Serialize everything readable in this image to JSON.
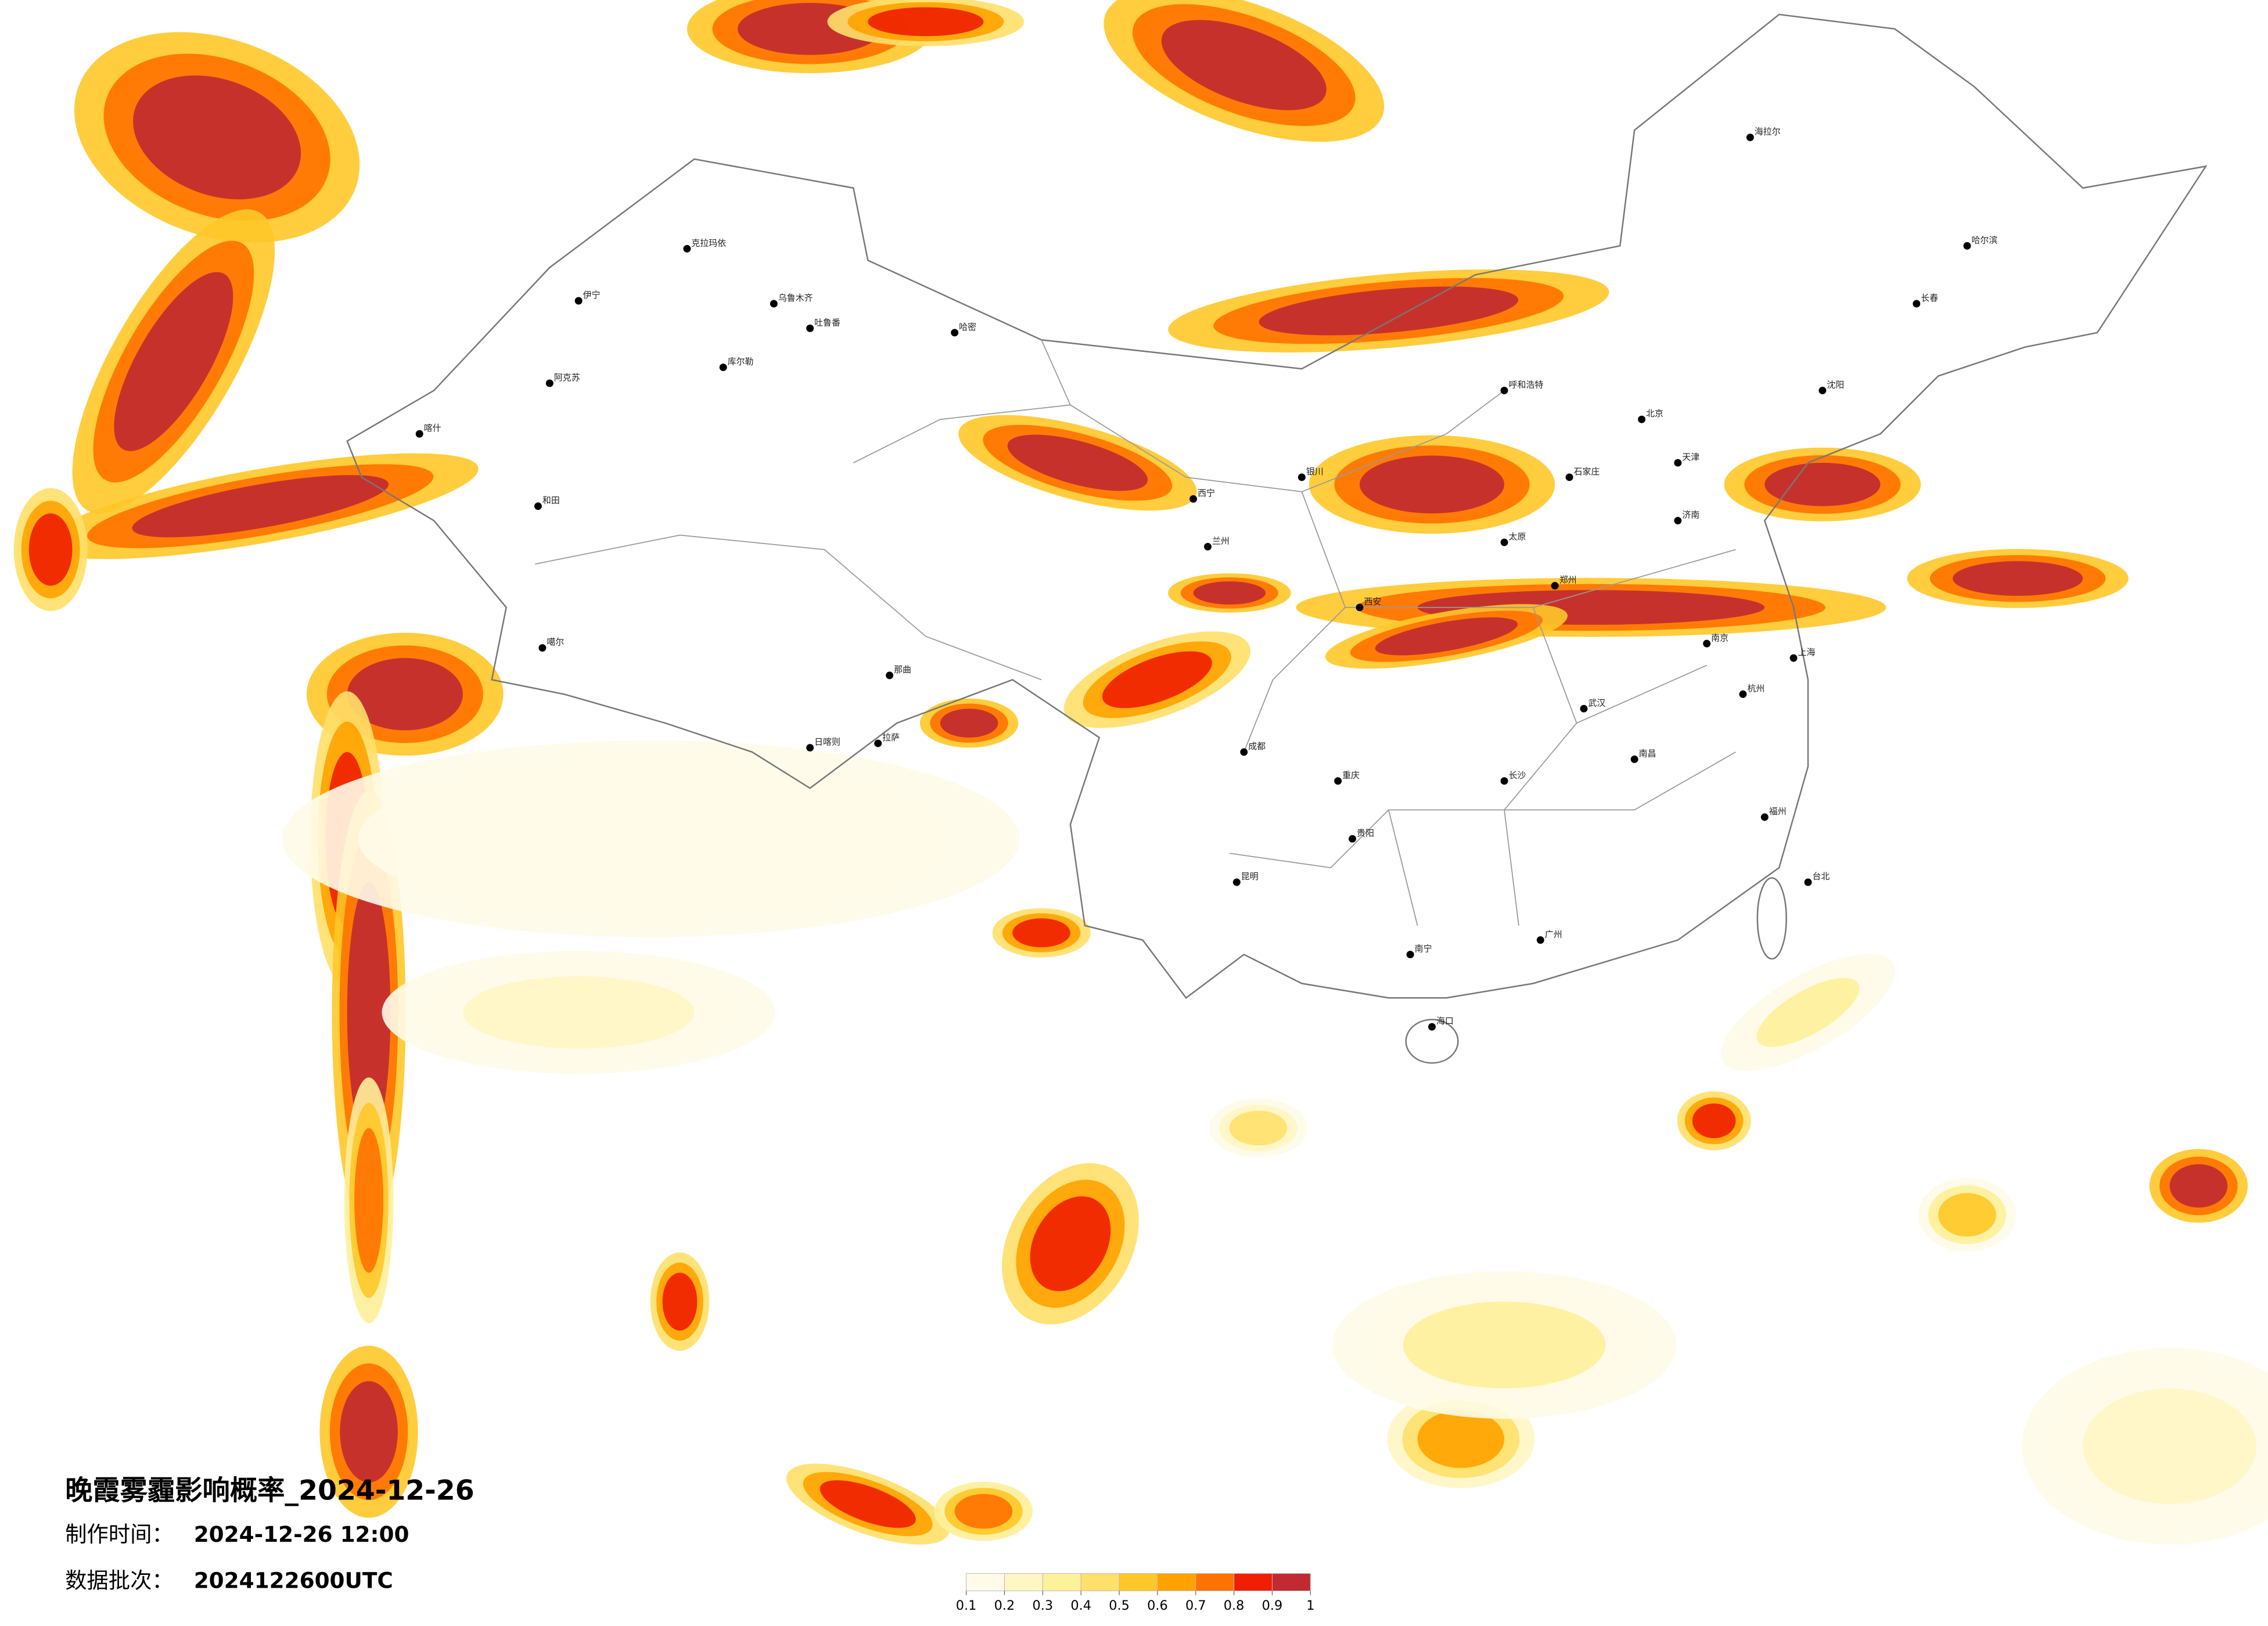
{
  "header": {
    "title": "晚霞雾霾影响概率_2024-12-26",
    "made_label": "制作时间：",
    "made_time": "2024-12-26 12:00",
    "batch_label": "数据批次：",
    "batch": "2024122600UTC"
  },
  "legend": {
    "ticks": [
      0.1,
      0.2,
      0.3,
      0.4,
      0.5,
      0.6,
      0.7,
      0.8,
      0.9,
      1
    ],
    "colors": [
      "#fffbe8",
      "#fff6c4",
      "#fff09a",
      "#ffe06a",
      "#ffc828",
      "#ffa200",
      "#ff7200",
      "#f01e00",
      "#c02a30"
    ]
  },
  "cities": [
    "克拉玛依",
    "乌鲁木齐",
    "吐鲁番",
    "哈密",
    "伊宁",
    "库尔勒",
    "阿克苏",
    "喀什",
    "和田",
    "噶尔",
    "日喀则",
    "拉萨",
    "那曲",
    "西宁",
    "兰州",
    "银川",
    "呼和浩特",
    "北京",
    "天津",
    "石家庄",
    "太原",
    "济南",
    "郑州",
    "西安",
    "成都",
    "重庆",
    "贵阳",
    "昆明",
    "南宁",
    "广州",
    "长沙",
    "武汉",
    "南昌",
    "杭州",
    "南京",
    "上海",
    "福州",
    "台北",
    "海口",
    "沈阳",
    "长春",
    "哈尔滨",
    "海拉尔"
  ]
}
